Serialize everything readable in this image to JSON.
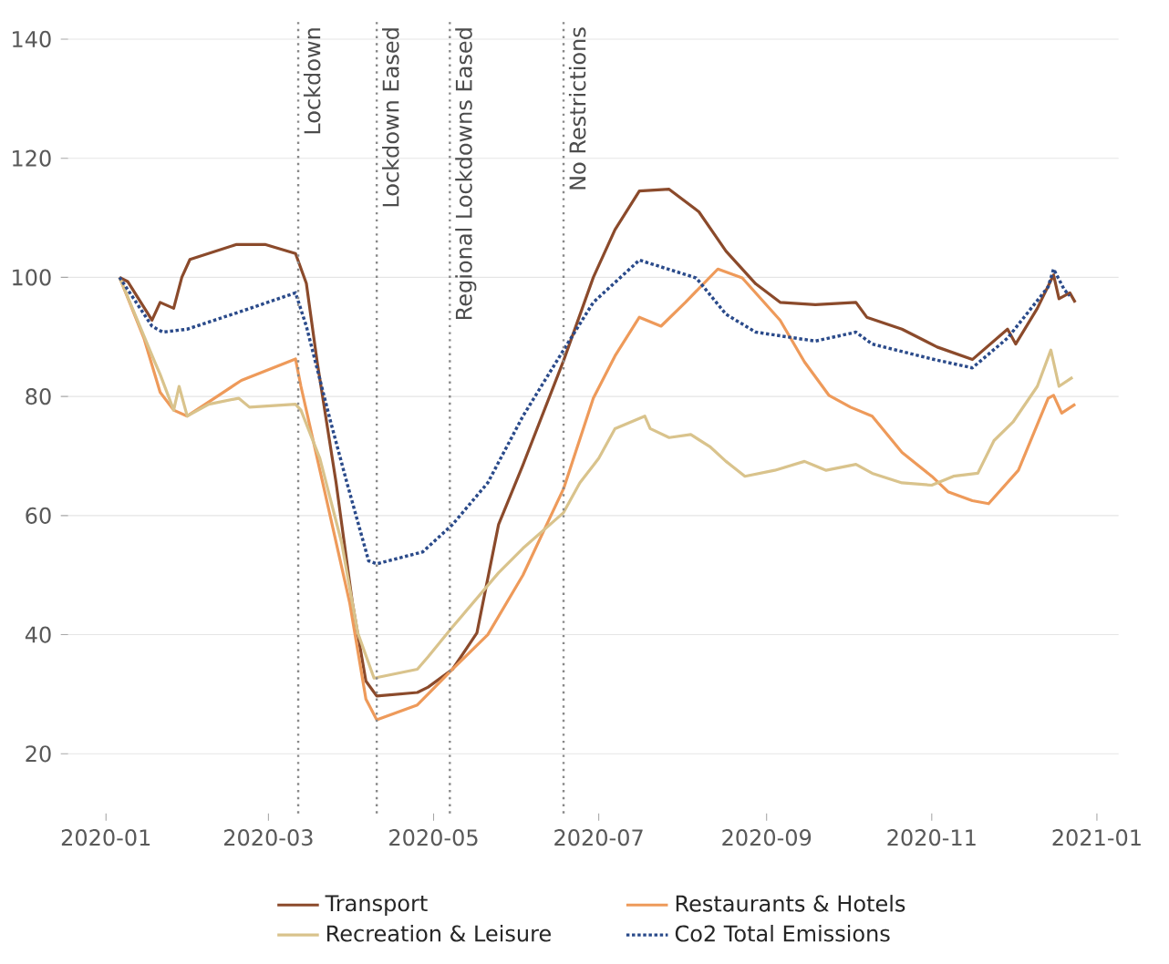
{
  "chart_data": {
    "type": "line",
    "xlim": [
      "2019-12-18",
      "2021-01-09"
    ],
    "xticks": [
      "2020-01",
      "2020-03",
      "2020-05",
      "2020-07",
      "2020-09",
      "2020-11",
      "2021-01"
    ],
    "ylim": [
      10,
      143
    ],
    "yticks": [
      20,
      40,
      60,
      80,
      100,
      120,
      140
    ],
    "grid": "y",
    "legend": "bottom",
    "series": [
      {
        "name": "Transport",
        "color": "#8b4a2b",
        "line_style": "solid",
        "x": [
          "2020-01-06",
          "2020-01-09",
          "2020-01-18",
          "2020-01-21",
          "2020-01-26",
          "2020-01-29",
          "2020-02-01",
          "2020-02-18",
          "2020-02-29",
          "2020-03-11",
          "2020-03-15",
          "2020-03-19",
          "2020-03-26",
          "2020-04-01",
          "2020-04-06",
          "2020-04-10",
          "2020-04-25",
          "2020-04-29",
          "2020-05-08",
          "2020-05-17",
          "2020-05-25",
          "2020-06-03",
          "2020-06-18",
          "2020-06-29",
          "2020-07-07",
          "2020-07-16",
          "2020-07-27",
          "2020-08-07",
          "2020-08-17",
          "2020-08-28",
          "2020-09-06",
          "2020-09-19",
          "2020-10-04",
          "2020-10-08",
          "2020-10-21",
          "2020-11-03",
          "2020-11-16",
          "2020-11-29",
          "2020-12-02",
          "2020-12-10",
          "2020-12-16",
          "2020-12-18",
          "2020-12-22",
          "2020-12-24"
        ],
        "values": [
          100,
          99.3,
          92.8,
          95.8,
          94.8,
          100,
          103,
          105.5,
          105.5,
          104,
          99,
          85.8,
          65.5,
          45.4,
          32.2,
          29.7,
          30.3,
          31.2,
          34.2,
          40.3,
          58.5,
          68.5,
          86,
          100,
          108,
          114.5,
          114.8,
          111,
          104.4,
          98.9,
          95.8,
          95.4,
          95.8,
          93.3,
          91.3,
          88.3,
          86.2,
          91.3,
          88.8,
          94.8,
          100.4,
          96.4,
          97.4,
          95.8
        ]
      },
      {
        "name": "Restaurants & Hotels",
        "color": "#ee9a5a",
        "line_style": "solid",
        "x": [
          "2020-01-06",
          "2020-01-15",
          "2020-01-21",
          "2020-01-26",
          "2020-01-31",
          "2020-02-10",
          "2020-02-20",
          "2020-03-11",
          "2020-03-13",
          "2020-03-22",
          "2020-03-31",
          "2020-04-06",
          "2020-04-10",
          "2020-04-25",
          "2020-05-08",
          "2020-05-21",
          "2020-06-03",
          "2020-06-18",
          "2020-06-29",
          "2020-07-07",
          "2020-07-16",
          "2020-07-24",
          "2020-08-02",
          "2020-08-14",
          "2020-08-23",
          "2020-09-06",
          "2020-09-15",
          "2020-09-24",
          "2020-10-02",
          "2020-10-10",
          "2020-10-21",
          "2020-11-01",
          "2020-11-07",
          "2020-11-16",
          "2020-11-22",
          "2020-12-03",
          "2020-12-14",
          "2020-12-16",
          "2020-12-19",
          "2020-12-24"
        ],
        "values": [
          100,
          89.8,
          80.7,
          77.7,
          76.7,
          79.7,
          82.7,
          86.3,
          81.7,
          63.6,
          45.4,
          29.2,
          25.7,
          28.2,
          34.2,
          40,
          50,
          64.5,
          79.7,
          86.8,
          93.3,
          91.8,
          95.8,
          101.4,
          99.9,
          92.8,
          85.8,
          80.2,
          78.2,
          76.7,
          70.6,
          66.6,
          64,
          62.5,
          62,
          67.6,
          79.7,
          80.2,
          77.2,
          78.7
        ]
      },
      {
        "name": "Recreation & Leisure",
        "color": "#d9c38c",
        "line_style": "solid",
        "x": [
          "2020-01-06",
          "2020-01-19",
          "2020-01-21",
          "2020-01-26",
          "2020-01-28",
          "2020-01-31",
          "2020-02-08",
          "2020-02-19",
          "2020-02-23",
          "2020-03-11",
          "2020-03-13",
          "2020-03-20",
          "2020-03-28",
          "2020-04-03",
          "2020-04-09",
          "2020-04-25",
          "2020-04-29",
          "2020-05-08",
          "2020-05-25",
          "2020-06-03",
          "2020-06-18",
          "2020-06-24",
          "2020-07-01",
          "2020-07-07",
          "2020-07-18",
          "2020-07-20",
          "2020-07-27",
          "2020-08-04",
          "2020-08-11",
          "2020-08-17",
          "2020-08-24",
          "2020-09-04",
          "2020-09-15",
          "2020-09-23",
          "2020-10-04",
          "2020-10-10",
          "2020-10-21",
          "2020-11-01",
          "2020-11-09",
          "2020-11-18",
          "2020-11-24",
          "2020-12-01",
          "2020-12-10",
          "2020-12-15",
          "2020-12-18",
          "2020-12-23"
        ],
        "values": [
          100,
          85.8,
          83.7,
          77.7,
          81.7,
          76.7,
          78.7,
          79.7,
          78.2,
          78.7,
          77.7,
          69.6,
          55.5,
          40.3,
          32.7,
          34.2,
          36.3,
          41.3,
          50.4,
          54.5,
          60.5,
          65.5,
          69.6,
          74.6,
          76.7,
          74.6,
          73.1,
          73.6,
          71.6,
          69.1,
          66.6,
          67.6,
          69.1,
          67.6,
          68.6,
          67.1,
          65.5,
          65.1,
          66.6,
          67.1,
          72.6,
          75.7,
          81.7,
          87.8,
          81.7,
          83.2
        ]
      },
      {
        "name": "Co2 Total Emissions",
        "color": "#2a4a8a",
        "line_style": "dotted",
        "x": [
          "2020-01-06",
          "2020-01-18",
          "2020-01-22",
          "2020-01-31",
          "2020-02-20",
          "2020-03-11",
          "2020-03-15",
          "2020-03-24",
          "2020-03-30",
          "2020-04-07",
          "2020-04-10",
          "2020-04-27",
          "2020-05-08",
          "2020-05-21",
          "2020-06-03",
          "2020-06-18",
          "2020-06-29",
          "2020-07-16",
          "2020-08-06",
          "2020-08-17",
          "2020-08-28",
          "2020-09-19",
          "2020-10-04",
          "2020-10-10",
          "2020-11-01",
          "2020-11-16",
          "2020-11-29",
          "2020-12-14",
          "2020-12-16",
          "2020-12-20",
          "2020-12-22"
        ],
        "values": [
          100,
          91.8,
          90.8,
          91.3,
          94.3,
          97.4,
          91.8,
          75.7,
          65.5,
          52.4,
          51.9,
          53.9,
          58.5,
          65.5,
          76.7,
          87.8,
          95.8,
          102.9,
          99.9,
          93.8,
          90.8,
          89.3,
          90.8,
          88.8,
          86.3,
          84.8,
          89.8,
          98.4,
          101.4,
          97.9,
          96.9
        ]
      }
    ],
    "ref_lines": [
      {
        "axis": "x",
        "value": "2020-03-12",
        "label": "Lockdown",
        "color": "#888888",
        "line_style": "dotted"
      },
      {
        "axis": "x",
        "value": "2020-04-10",
        "label": "Lockdown Eased",
        "color": "#888888",
        "line_style": "dotted"
      },
      {
        "axis": "x",
        "value": "2020-05-07",
        "label": "Regional Lockdowns Eased",
        "color": "#888888",
        "line_style": "dotted"
      },
      {
        "axis": "x",
        "value": "2020-06-18",
        "label": "No Restrictions",
        "color": "#888888",
        "line_style": "dotted"
      }
    ]
  }
}
